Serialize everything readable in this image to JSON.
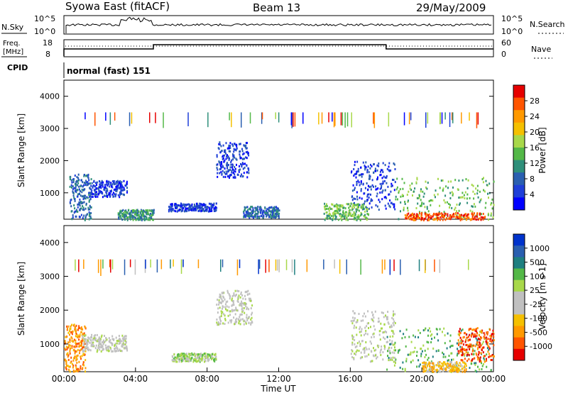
{
  "header": {
    "station": "Syowa East (fitACF)",
    "beam": "Beam 13",
    "date": "29/May/2009"
  },
  "chart_data": [
    {
      "type": "line",
      "panel": "noise",
      "left_label": "N.Sky",
      "right_label": "N.Search",
      "left_ticks": [
        "10^5",
        "10^0"
      ],
      "right_ticks": [
        "10^5",
        "10^0"
      ],
      "grid": false
    },
    {
      "type": "line",
      "panel": "frequency",
      "left_label_line1": "Freq.",
      "left_label_line2": "[MHz]",
      "left_ticks": [
        "18",
        "8"
      ],
      "right_label": "Nave",
      "right_ticks": [
        "60",
        "0"
      ],
      "steps": [
        {
          "x": "00:00",
          "y": 0.0
        },
        {
          "x": "00:00",
          "y": 0.5
        },
        {
          "x": "05:00",
          "y": 0.5
        },
        {
          "x": "05:00",
          "y": 0.8
        },
        {
          "x": "18:00",
          "y": 0.8
        },
        {
          "x": "18:00",
          "y": 0.5
        },
        {
          "x": "24:00",
          "y": 0.5
        }
      ],
      "grid": false
    },
    {
      "type": "table",
      "panel": "cpid",
      "label": "CPID",
      "mode": "normal (fast) 151"
    },
    {
      "type": "heatmap",
      "panel": "power",
      "title": "",
      "xlabel": "",
      "ylabel": "Slant Range [km]",
      "xlim": [
        0,
        24
      ],
      "ylim": [
        180,
        4500
      ],
      "y_ticks": [
        "4000",
        "3000",
        "2000",
        "1000"
      ],
      "grid": false,
      "colorbar": {
        "label": "Power [dB]",
        "ticks": [
          "28",
          "24",
          "20",
          "16",
          "12",
          "8",
          "4"
        ],
        "colors": [
          "#e60000",
          "#ff5500",
          "#ff9900",
          "#f5c000",
          "#a8d84a",
          "#54b848",
          "#2f8f7a",
          "#2a5fb0",
          "#1f3fd8",
          "#0000ff"
        ]
      },
      "clusters": [
        {
          "x": [
            0.3,
            1.5
          ],
          "y": [
            180,
            1600
          ],
          "level": 2
        },
        {
          "x": [
            1.5,
            3.5
          ],
          "y": [
            900,
            1400
          ],
          "level": 1
        },
        {
          "x": [
            5.8,
            8.5
          ],
          "y": [
            450,
            700
          ],
          "level": 1
        },
        {
          "x": [
            8.5,
            10.3
          ],
          "y": [
            1500,
            2600
          ],
          "level": 1
        },
        {
          "x": [
            16.0,
            18.5
          ],
          "y": [
            500,
            2000
          ],
          "level": 1
        },
        {
          "x": [
            18.5,
            24.0
          ],
          "y": [
            200,
            1500
          ],
          "level": 4
        },
        {
          "x": [
            19.0,
            23.5
          ],
          "y": [
            180,
            400
          ],
          "level": 8
        },
        {
          "x": [
            3.0,
            5.0
          ],
          "y": [
            180,
            500
          ],
          "level": 3
        },
        {
          "x": [
            10.0,
            12.0
          ],
          "y": [
            250,
            600
          ],
          "level": 2
        },
        {
          "x": [
            14.5,
            17.0
          ],
          "y": [
            180,
            700
          ],
          "level": 4
        }
      ]
    },
    {
      "type": "heatmap",
      "panel": "velocity",
      "title": "",
      "xlabel": "Time UT",
      "ylabel": "Slant Range [km]",
      "x_ticks": [
        "00:00",
        "04:00",
        "08:00",
        "12:00",
        "16:00",
        "20:00",
        "00:00"
      ],
      "xlim": [
        0,
        24
      ],
      "ylim": [
        180,
        4500
      ],
      "y_ticks": [
        "4000",
        "3000",
        "2000",
        "1000"
      ],
      "grid": false,
      "colorbar": {
        "label": "Velocity [m s-1]",
        "ticks": [
          "1000",
          "500",
          "100",
          "25",
          "-25",
          "-100",
          "-500",
          "-1000"
        ],
        "colors": [
          "#0033cc",
          "#2a5fb0",
          "#1e7f80",
          "#54b848",
          "#a8d84a",
          "#c0c0c0",
          "#c0c0c0",
          "#f5c000",
          "#ff9900",
          "#ff5500",
          "#e60000"
        ]
      },
      "clusters": [
        {
          "x": [
            0.0,
            1.2
          ],
          "y": [
            200,
            1600
          ],
          "level": 8
        },
        {
          "x": [
            1.0,
            3.5
          ],
          "y": [
            800,
            1300
          ],
          "level": 5
        },
        {
          "x": [
            6.0,
            8.5
          ],
          "y": [
            500,
            750
          ],
          "level": 4
        },
        {
          "x": [
            8.5,
            10.5
          ],
          "y": [
            1600,
            2600
          ],
          "level": 5
        },
        {
          "x": [
            16.0,
            18.5
          ],
          "y": [
            500,
            2000
          ],
          "level": 5
        },
        {
          "x": [
            18.0,
            24.0
          ],
          "y": [
            200,
            1500
          ],
          "level": 3
        },
        {
          "x": [
            20.0,
            22.5
          ],
          "y": [
            200,
            500
          ],
          "level": 7
        },
        {
          "x": [
            22.0,
            24.0
          ],
          "y": [
            500,
            1500
          ],
          "level": 9
        }
      ]
    }
  ]
}
